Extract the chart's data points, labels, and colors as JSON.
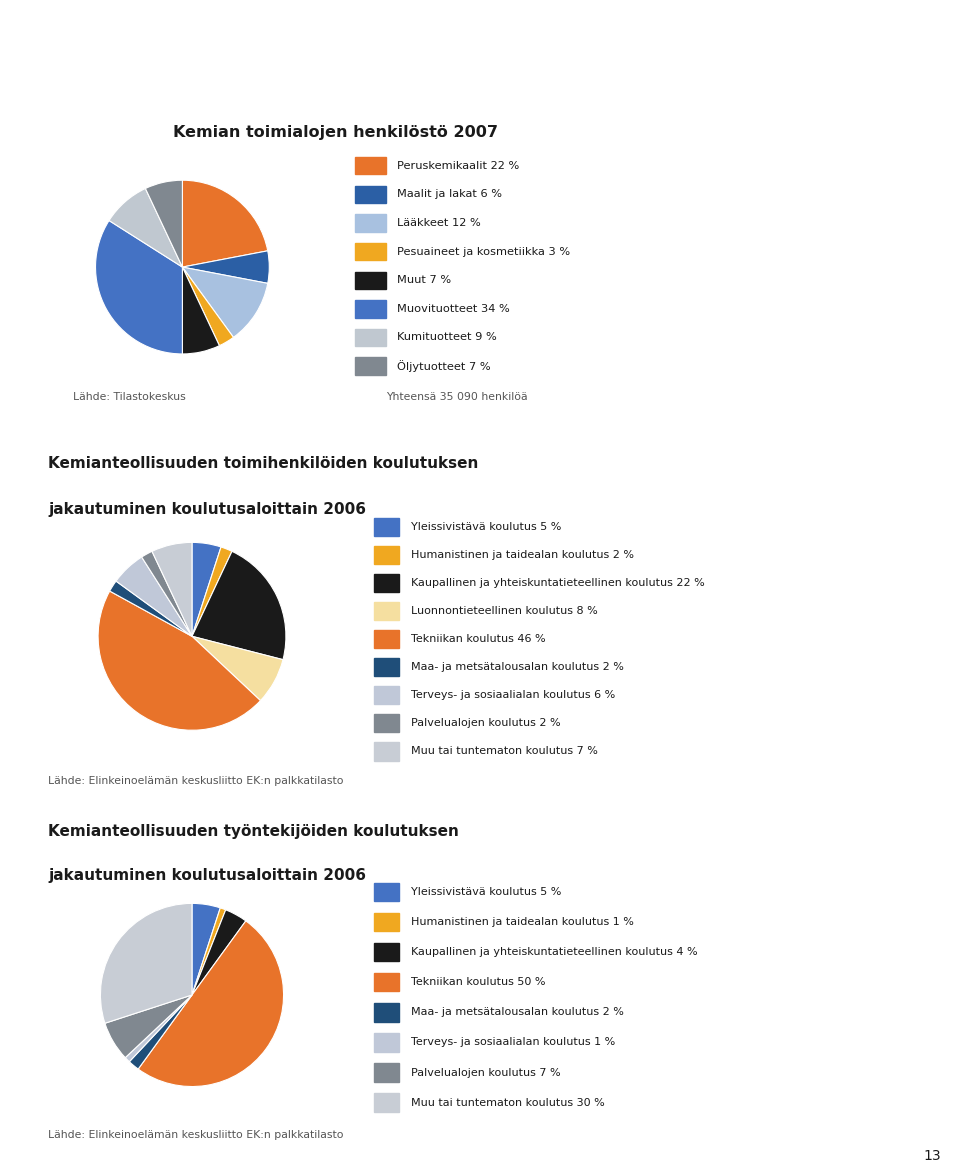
{
  "header_color": "#E8732A",
  "background_color": "#FFFFFF",
  "text_color": "#1a1a1a",
  "source_color": "#555555",
  "title1": "Kemian toimialojen henkilöstö 2007",
  "pie1_values": [
    22,
    6,
    12,
    3,
    7,
    34,
    9,
    7
  ],
  "pie1_colors": [
    "#E8732A",
    "#2B5FA5",
    "#A8C1E0",
    "#F0A820",
    "#1a1a1a",
    "#4472C4",
    "#C0C8D0",
    "#808890"
  ],
  "pie1_labels": [
    "Peruskemikaalit 22 %",
    "Maalit ja lakat 6 %",
    "Lääkkeet 12 %",
    "Pesuaineet ja kosmetiikka 3 %",
    "Muut 7 %",
    "Muovituotteet 34 %",
    "Kumituotteet 9 %",
    "Öljytuotteet 7 %"
  ],
  "pie1_source_left": "Lähde: Tilastokeskus",
  "pie1_source_right": "Yhteensä 35 090 henkilöä",
  "title2_line1": "Kemianteollisuuden toimihenkilöiden koulutuksen",
  "title2_line2": "jakautuminen koulutusaloittain 2006",
  "pie2_values": [
    5,
    2,
    22,
    8,
    46,
    2,
    6,
    2,
    7
  ],
  "pie2_colors": [
    "#4472C4",
    "#F0A820",
    "#1a1a1a",
    "#F5DFA0",
    "#E8732A",
    "#1F4E79",
    "#C0C8D8",
    "#808890",
    "#C8CDD5"
  ],
  "pie2_labels": [
    "Yleissivistävä koulutus 5 %",
    "Humanistinen ja taidealan koulutus 2 %",
    "Kaupallinen ja yhteiskuntatieteellinen koulutus 22 %",
    "Luonnontieteellinen koulutus 8 %",
    "Tekniikan koulutus 46 %",
    "Maa- ja metsätalousalan koulutus 2 %",
    "Terveys- ja sosiaalialan koulutus 6 %",
    "Palvelualojen koulutus 2 %",
    "Muu tai tuntematon koulutus 7 %"
  ],
  "pie2_source": "Lähde: Elinkeinoelämän keskusliitto EK:n palkkatilasto",
  "title3_line1": "Kemianteollisuuden työntekijöiden koulutuksen",
  "title3_line2": "jakautuminen koulutusaloittain 2006",
  "pie3_values": [
    5,
    1,
    4,
    50,
    2,
    1,
    7,
    30
  ],
  "pie3_colors": [
    "#4472C4",
    "#F0A820",
    "#1a1a1a",
    "#E8732A",
    "#1F4E79",
    "#C0C8D8",
    "#808890",
    "#C8CDD5"
  ],
  "pie3_labels": [
    "Yleissivistävä koulutus 5 %",
    "Humanistinen ja taidealan koulutus 1 %",
    "Kaupallinen ja yhteiskuntatieteellinen koulutus 4 %",
    "Tekniikan koulutus 50 %",
    "Maa- ja metsätalousalan koulutus 2 %",
    "Terveys- ja sosiaalialan koulutus 1 %",
    "Palvelualojen koulutus 7 %",
    "Muu tai tuntematon koulutus 30 %"
  ],
  "pie3_source": "Lähde: Elinkeinoelämän keskusliitto EK:n palkkatilasto",
  "page_number": "13"
}
